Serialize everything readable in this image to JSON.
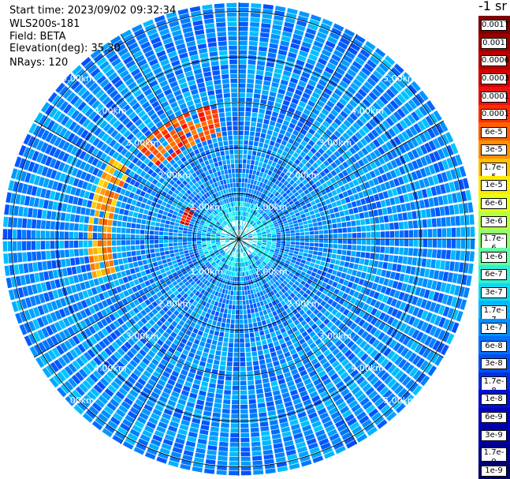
{
  "info": {
    "start_time": "Start time: 2023/09/02 09:32:34",
    "instrument": "WLS200s-181",
    "field": "Field: BETA",
    "elevation": "Elevation(deg): 35.30",
    "nrays": "NRays: 120"
  },
  "colorbar": {
    "title": "-1 sr",
    "labels": [
      "0.0017",
      "0.001",
      "0.0006",
      "0.0003",
      "0.00017",
      "0.0001",
      "6e-5",
      "3e-5",
      "1.7e-5",
      "1e-5",
      "6e-6",
      "3e-6",
      "1.7e-6",
      "1e-6",
      "6e-7",
      "3e-7",
      "1.7e-7",
      "1e-7",
      "6e-8",
      "3e-8",
      "1.7e-8",
      "1e-8",
      "6e-9",
      "3e-9",
      "1.7e-9",
      "1e-9"
    ],
    "colors": [
      "#7f0000",
      "#9a0000",
      "#b80000",
      "#d40000",
      "#ee1010",
      "#ff3000",
      "#ff6000",
      "#ff9000",
      "#ffc000",
      "#ffea00",
      "#e8ff10",
      "#b8ff40",
      "#90ff68",
      "#60ffa0",
      "#30f0d0",
      "#10d8f0",
      "#00b8ff",
      "#0090ff",
      "#0070ff",
      "#0050f0",
      "#0030e0",
      "#0010d0",
      "#0000c0",
      "#0000a8",
      "#000090",
      "#000070"
    ]
  },
  "chart_data": {
    "type": "heatmap",
    "projection": "polar (PPI scan)",
    "field": "BETA",
    "units": "sr^-1",
    "nrays": 120,
    "range_rings_km": [
      1.0,
      2.0,
      3.0,
      4.0,
      5.0
    ],
    "range_labels": [
      "1.00km",
      "2.00km",
      "3.00km",
      "4.00km",
      "5.00km"
    ],
    "max_range_km": 5.2,
    "color_scale": "log10",
    "color_range": [
      1e-09,
      0.0017
    ],
    "dominant_value_range": [
      1e-08,
      1e-07
    ],
    "features": [
      {
        "description": "near-range ring of elevated backscatter",
        "range_km": [
          0.0,
          0.8
        ],
        "value": 2e-07
      },
      {
        "description": "strong return arc west-northwest",
        "azimuth_deg": [
          285,
          305
        ],
        "range_km": [
          1.1,
          1.3
        ],
        "value": 0.0003
      },
      {
        "description": "cloud arc north-northwest",
        "azimuth_deg": [
          310,
          350
        ],
        "range_km": [
          2.2,
          3.0
        ],
        "value": 0.0001
      },
      {
        "description": "return arc west",
        "azimuth_deg": [
          255,
          300
        ],
        "range_km": [
          2.8,
          3.3
        ],
        "value": 3e-05
      }
    ]
  }
}
